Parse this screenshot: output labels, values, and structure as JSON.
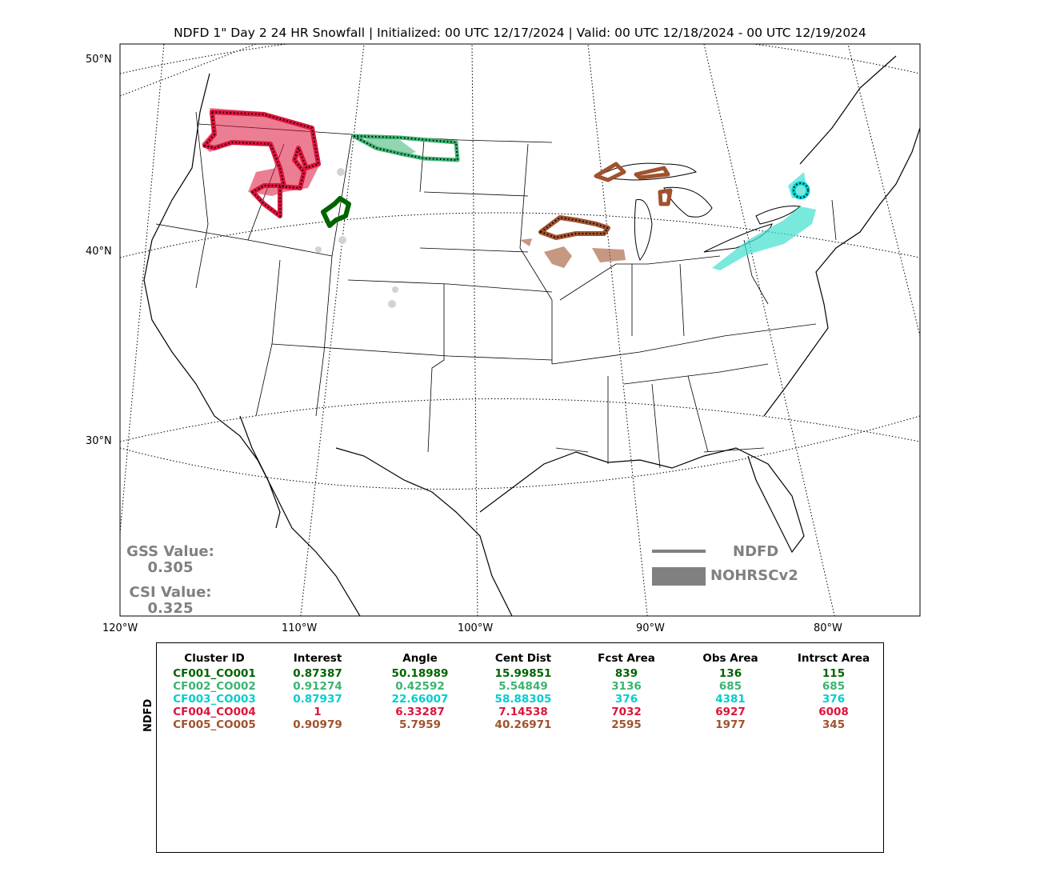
{
  "title": "NDFD 1\" Day 2 24 HR Snowfall | Initialized: 00 UTC 12/17/2024 | Valid: 00 UTC 12/18/2024 - 00 UTC 12/19/2024",
  "lat_ticks": [
    "50°N",
    "40°N",
    "30°N"
  ],
  "lon_ticks": [
    "120°W",
    "110°W",
    "100°W",
    "90°W",
    "80°W"
  ],
  "scores": {
    "gss_label": "GSS Value:",
    "gss_value": "0.305",
    "csi_label": "CSI Value:",
    "csi_value": "0.325"
  },
  "legend": {
    "line_label": "NDFD",
    "fill_label": "NOHRSCv2",
    "color": "#808080"
  },
  "table": {
    "side_label": "NDFD",
    "headers": [
      "Cluster ID",
      "Interest",
      "Angle",
      "Cent Dist",
      "Fcst Area",
      "Obs Area",
      "Intrsct Area"
    ],
    "rows": [
      {
        "color": "#006400",
        "cells": [
          "CF001_CO001",
          "0.87387",
          "50.18989",
          "15.99851",
          "839",
          "136",
          "115"
        ]
      },
      {
        "color": "#3cb371",
        "cells": [
          "CF002_CO002",
          "0.91274",
          "0.42592",
          "5.54849",
          "3136",
          "685",
          "685"
        ]
      },
      {
        "color": "#00ced1",
        "cells": [
          "CF003_CO003",
          "0.87937",
          "22.66007",
          "58.88305",
          "376",
          "4381",
          "376"
        ]
      },
      {
        "color": "#dc143c",
        "cells": [
          "CF004_CO004",
          "1",
          "6.33287",
          "7.14538",
          "7032",
          "6927",
          "6008"
        ]
      },
      {
        "color": "#a0522d",
        "cells": [
          "CF005_CO005",
          "0.90979",
          "5.7959",
          "40.26971",
          "2595",
          "1977",
          "345"
        ]
      }
    ]
  },
  "colors": {
    "cluster1": "#006400",
    "cluster2": "#3cb371",
    "cluster3": "#00ced1",
    "cluster4": "#dc143c",
    "cluster5": "#a0522d",
    "unmatched": "#d3d3d3"
  }
}
